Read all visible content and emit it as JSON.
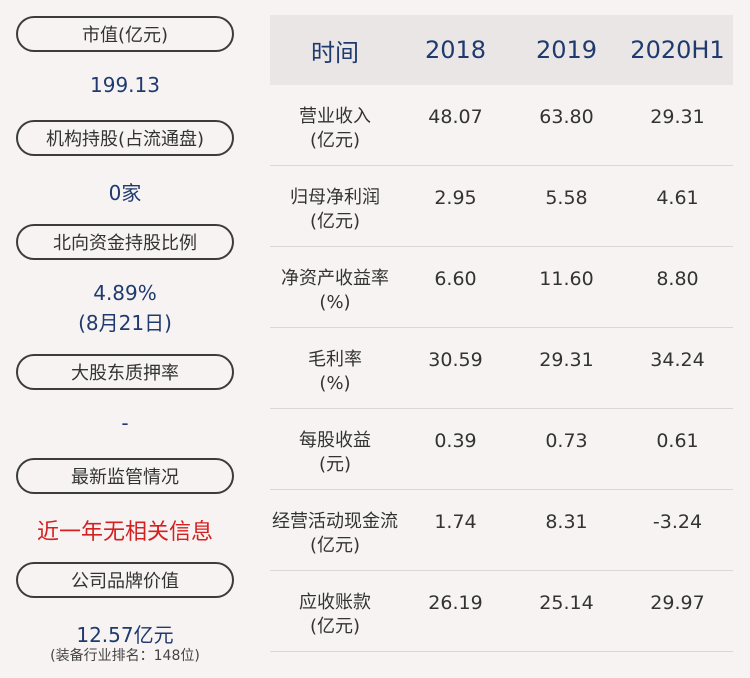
{
  "left": {
    "items": [
      {
        "label": "市值(亿元)",
        "value": "199.13"
      },
      {
        "label": "机构持股(占流通盘)",
        "value": "0家"
      },
      {
        "label": "北向资金持股比例",
        "value": "4.89%",
        "value2": "(8月21日)"
      },
      {
        "label": "大股东质押率",
        "value": "-"
      },
      {
        "label": "最新监管情况",
        "value": "近一年无相关信息"
      },
      {
        "label": "公司品牌价值",
        "value": "12.57亿元",
        "note": "(装备行业排名：148位)"
      }
    ]
  },
  "table": {
    "headers": [
      "时间",
      "2018",
      "2019",
      "2020H1"
    ],
    "rows": [
      {
        "label1": "营业收入",
        "label2": "(亿元)",
        "values": [
          "48.07",
          "63.80",
          "29.31"
        ]
      },
      {
        "label1": "归母净利润",
        "label2": "(亿元)",
        "values": [
          "2.95",
          "5.58",
          "4.61"
        ]
      },
      {
        "label1": "净资产收益率",
        "label2": "(%)",
        "values": [
          "6.60",
          "11.60",
          "8.80"
        ]
      },
      {
        "label1": "毛利率",
        "label2": "(%)",
        "values": [
          "30.59",
          "29.31",
          "34.24"
        ]
      },
      {
        "label1": "每股收益",
        "label2": "(元)",
        "values": [
          "0.39",
          "0.73",
          "0.61"
        ]
      },
      {
        "label1": "经营活动现金流",
        "label2": "(亿元)",
        "values": [
          "1.74",
          "8.31",
          "-3.24"
        ]
      },
      {
        "label1": "应收账款",
        "label2": "(亿元)",
        "values": [
          "26.19",
          "25.14",
          "29.97"
        ]
      }
    ]
  },
  "colors": {
    "accent": "#1f3a6e",
    "alert": "#d42020",
    "header_bg": "#ebe6e6",
    "page_bg": "#f7f3f3"
  }
}
